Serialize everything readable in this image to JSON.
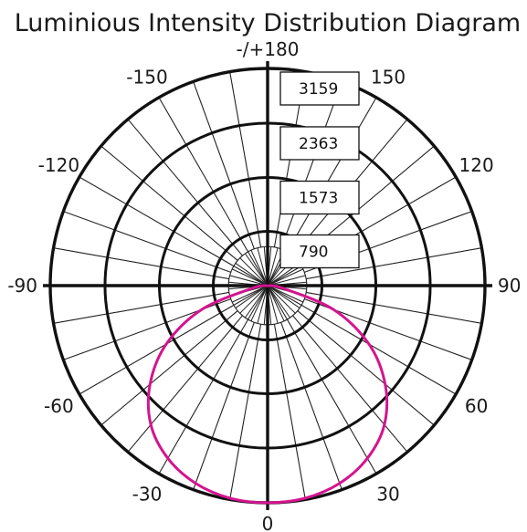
{
  "chart_data": {
    "type": "polar",
    "title": "Luminious Intensity Distribution Diagram",
    "angle_labels": [
      {
        "angle": 180,
        "text": "-/+180"
      },
      {
        "angle": -150,
        "text": "-150"
      },
      {
        "angle": 150,
        "text": "150"
      },
      {
        "angle": -120,
        "text": "-120"
      },
      {
        "angle": 120,
        "text": "120"
      },
      {
        "angle": -90,
        "text": "-90"
      },
      {
        "angle": 90,
        "text": "90"
      },
      {
        "angle": -60,
        "text": "-60"
      },
      {
        "angle": 60,
        "text": "60"
      },
      {
        "angle": -30,
        "text": "-30"
      },
      {
        "angle": 30,
        "text": "30"
      },
      {
        "angle": 0,
        "text": "0"
      }
    ],
    "radial_ticks": [
      790,
      1573,
      2363,
      3159
    ],
    "radial_max": 3159,
    "spoke_step_degrees": 10,
    "grid": true,
    "series": [
      {
        "color": "#d4148f",
        "angles": [
          -90,
          -80,
          -70,
          -60,
          -50,
          -40,
          -30,
          -20,
          -10,
          0,
          10,
          20,
          30,
          40,
          50,
          60,
          70,
          80,
          90
        ],
        "values": [
          0,
          230,
          1020,
          1700,
          2230,
          2640,
          2900,
          3060,
          3140,
          3159,
          3140,
          3060,
          2900,
          2640,
          2230,
          1700,
          1020,
          230,
          0
        ]
      }
    ]
  }
}
